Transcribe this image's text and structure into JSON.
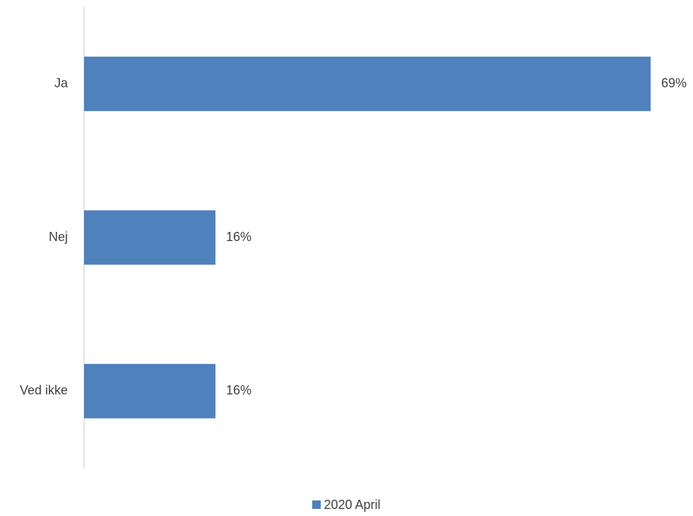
{
  "chart_data": {
    "type": "bar",
    "orientation": "horizontal",
    "categories": [
      "Ja",
      "Nej",
      "Ved ikke"
    ],
    "series": [
      {
        "name": "2020 April",
        "values": [
          69,
          16,
          16
        ],
        "color": "#4f81bd"
      }
    ],
    "data_labels": [
      "69%",
      "16%",
      "16%"
    ],
    "value_unit": "%",
    "xlim": [
      0,
      69
    ],
    "grid": false,
    "legend_position": "bottom",
    "title": "",
    "xlabel": "",
    "ylabel": ""
  }
}
